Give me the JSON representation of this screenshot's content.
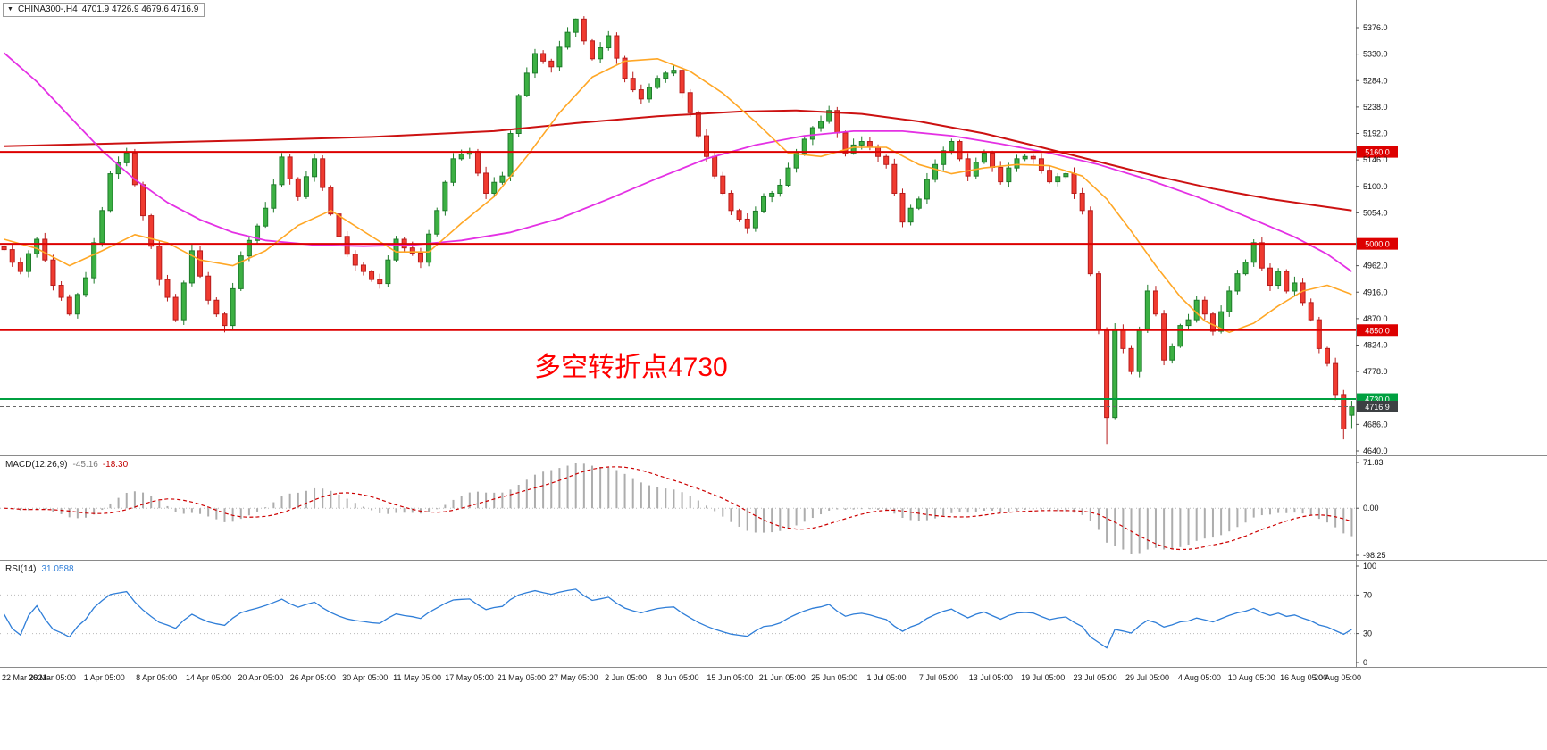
{
  "header": {
    "symbol_timeframe": "CHINA300-,H4",
    "ohlc": "4701.9 4726.9 4679.6 4716.9"
  },
  "annotation": {
    "text": "多空转折点4730",
    "color": "#ff0000"
  },
  "indicators": {
    "macd": {
      "name": "MACD(12,26,9)",
      "main_value": "-45.16",
      "signal_value": "-18.30"
    },
    "rsi": {
      "name": "RSI(14)",
      "value": "31.0588"
    }
  },
  "chart_data": {
    "type": "candlestick+indicators",
    "symbol": "CHINA300-",
    "timeframe": "H4",
    "ohlc_current": {
      "open": 4701.9,
      "high": 4726.9,
      "low": 4679.6,
      "close": 4716.9
    },
    "x_labels": [
      "22 Mar 2021",
      "26 Mar 05:00",
      "1 Apr 05:00",
      "8 Apr 05:00",
      "14 Apr 05:00",
      "20 Apr 05:00",
      "26 Apr 05:00",
      "30 Apr 05:00",
      "11 May 05:00",
      "17 May 05:00",
      "21 May 05:00",
      "27 May 05:00",
      "2 Jun 05:00",
      "8 Jun 05:00",
      "15 Jun 05:00",
      "21 Jun 05:00",
      "25 Jun 05:00",
      "1 Jul 05:00",
      "7 Jul 05:00",
      "13 Jul 05:00",
      "19 Jul 05:00",
      "23 Jul 05:00",
      "29 Jul 05:00",
      "4 Aug 05:00",
      "10 Aug 05:00",
      "16 Aug 05:00",
      "20 Aug 05:00"
    ],
    "y_axis": {
      "min": 4640,
      "max": 5376,
      "step": 46,
      "labels": [
        "5376.0",
        "5330.0",
        "5284.0",
        "5238.0",
        "5192.0",
        "5146.0",
        "5100.0",
        "5054.0",
        "4962.0",
        "4916.0",
        "4870.0",
        "4824.0",
        "4778.0",
        "4686.0",
        "4640.0"
      ]
    },
    "levels": [
      {
        "price": 5160,
        "label": "5160.0",
        "color": "#dd0000"
      },
      {
        "price": 5000,
        "label": "5000.0",
        "color": "#dd0000"
      },
      {
        "price": 4850,
        "label": "4850.0",
        "color": "#dd0000"
      },
      {
        "price": 4730,
        "label": "4730.0",
        "color": "#00a040"
      }
    ],
    "last_price": {
      "value": 4716.9,
      "label": "4716.9",
      "badge_color": "#3c4043"
    },
    "open_first": 4995,
    "closes": [
      4990,
      4968,
      4952,
      4983,
      5008,
      4972,
      4928,
      4907,
      4878,
      4912,
      4941,
      5002,
      5058,
      5122,
      5141,
      5158,
      5103,
      5049,
      4996,
      4938,
      4907,
      4868,
      4932,
      4988,
      4944,
      4902,
      4878,
      4858,
      4922,
      4979,
      5006,
      5031,
      5062,
      5103,
      5151,
      5113,
      5082,
      5117,
      5148,
      5098,
      5052,
      5013,
      4982,
      4963,
      4952,
      4938,
      4931,
      4972,
      5008,
      4993,
      4984,
      4968,
      5017,
      5058,
      5107,
      5148,
      5156,
      5161,
      5123,
      5088,
      5107,
      5118,
      5192,
      5258,
      5297,
      5331,
      5318,
      5308,
      5342,
      5368,
      5391,
      5353,
      5322,
      5341,
      5362,
      5323,
      5288,
      5268,
      5252,
      5272,
      5288,
      5297,
      5302,
      5263,
      5228,
      5188,
      5152,
      5118,
      5088,
      5058,
      5043,
      5028,
      5057,
      5082,
      5088,
      5102,
      5132,
      5158,
      5182,
      5202,
      5213,
      5232,
      5193,
      5158,
      5172,
      5178,
      5168,
      5152,
      5138,
      5088,
      5038,
      5062,
      5078,
      5112,
      5138,
      5162,
      5178,
      5148,
      5118,
      5142,
      5158,
      5133,
      5108,
      5132,
      5148,
      5152,
      5148,
      5128,
      5108,
      5117,
      5122,
      5088,
      5058,
      4948,
      4852,
      4698,
      4852,
      4818,
      4778,
      4852,
      4918,
      4878,
      4798,
      4822,
      4858,
      4868,
      4902,
      4878,
      4848,
      4882,
      4918,
      4948,
      4968,
      5002,
      4958,
      4928,
      4952,
      4918,
      4932,
      4898,
      4868,
      4818,
      4792,
      4738,
      4678,
      4716.9
    ],
    "overrides": {
      "high": {
        "70": 5392,
        "153": 5008
      },
      "low": {
        "27": 4846,
        "135": 4652,
        "164": 4660
      },
      "last": {
        "open": 4701.9,
        "high": 4726.9,
        "low": 4679.6,
        "close": 4716.9
      }
    },
    "colors": {
      "up_fill": "#3cb043",
      "up_stroke": "#1e7b2a",
      "down_fill": "#f03b30",
      "down_stroke": "#b71c1c"
    },
    "moving_averages": [
      {
        "name": "ma-slow-red",
        "color": "#cc1111",
        "width": 2,
        "points": [
          [
            0,
            5170
          ],
          [
            15,
            5175
          ],
          [
            30,
            5180
          ],
          [
            45,
            5186
          ],
          [
            60,
            5196
          ],
          [
            70,
            5210
          ],
          [
            80,
            5222
          ],
          [
            90,
            5230
          ],
          [
            97,
            5232
          ],
          [
            105,
            5226
          ],
          [
            112,
            5213
          ],
          [
            120,
            5192
          ],
          [
            127,
            5168
          ],
          [
            134,
            5143
          ],
          [
            141,
            5118
          ],
          [
            148,
            5096
          ],
          [
            155,
            5078
          ],
          [
            160,
            5068
          ],
          [
            165,
            5058
          ]
        ]
      },
      {
        "name": "ma-long-magenta",
        "color": "#e431e4",
        "width": 1.8,
        "points": [
          [
            0,
            5332
          ],
          [
            4,
            5282
          ],
          [
            8,
            5222
          ],
          [
            12,
            5162
          ],
          [
            16,
            5112
          ],
          [
            20,
            5072
          ],
          [
            24,
            5042
          ],
          [
            28,
            5020
          ],
          [
            32,
            5006
          ],
          [
            38,
            4998
          ],
          [
            44,
            4996
          ],
          [
            50,
            4998
          ],
          [
            56,
            5006
          ],
          [
            62,
            5020
          ],
          [
            68,
            5044
          ],
          [
            74,
            5078
          ],
          [
            80,
            5114
          ],
          [
            86,
            5148
          ],
          [
            92,
            5172
          ],
          [
            98,
            5188
          ],
          [
            104,
            5196
          ],
          [
            110,
            5196
          ],
          [
            116,
            5188
          ],
          [
            122,
            5174
          ],
          [
            128,
            5158
          ],
          [
            134,
            5138
          ],
          [
            140,
            5112
          ],
          [
            146,
            5082
          ],
          [
            152,
            5048
          ],
          [
            158,
            5012
          ],
          [
            162,
            4982
          ],
          [
            165,
            4952
          ]
        ]
      },
      {
        "name": "ma-fast-orange",
        "color": "#ffa726",
        "width": 1.6,
        "points": [
          [
            0,
            5008
          ],
          [
            4,
            4992
          ],
          [
            8,
            4962
          ],
          [
            12,
            4988
          ],
          [
            16,
            5016
          ],
          [
            20,
            5002
          ],
          [
            24,
            4972
          ],
          [
            28,
            4962
          ],
          [
            32,
            4988
          ],
          [
            36,
            5032
          ],
          [
            40,
            5058
          ],
          [
            44,
            5022
          ],
          [
            48,
            4986
          ],
          [
            52,
            4986
          ],
          [
            56,
            5036
          ],
          [
            60,
            5082
          ],
          [
            64,
            5152
          ],
          [
            68,
            5228
          ],
          [
            72,
            5290
          ],
          [
            76,
            5318
          ],
          [
            80,
            5322
          ],
          [
            84,
            5300
          ],
          [
            88,
            5262
          ],
          [
            92,
            5212
          ],
          [
            96,
            5158
          ],
          [
            100,
            5152
          ],
          [
            104,
            5168
          ],
          [
            108,
            5168
          ],
          [
            112,
            5138
          ],
          [
            116,
            5122
          ],
          [
            120,
            5132
          ],
          [
            124,
            5138
          ],
          [
            128,
            5136
          ],
          [
            132,
            5118
          ],
          [
            135,
            5078
          ],
          [
            138,
            5022
          ],
          [
            141,
            4962
          ],
          [
            144,
            4908
          ],
          [
            147,
            4866
          ],
          [
            150,
            4846
          ],
          [
            153,
            4862
          ],
          [
            156,
            4892
          ],
          [
            159,
            4918
          ],
          [
            162,
            4928
          ],
          [
            165,
            4912
          ]
        ]
      }
    ],
    "macd": {
      "label": "MACD(12,26,9)",
      "fast": 12,
      "slow": 26,
      "signal": 9,
      "value_main": -45.16,
      "value_signal": -18.3,
      "axis": [
        "71.83",
        "0.00",
        "-98.25"
      ],
      "hist_color": "#adadad",
      "signal_color": "#cc0000"
    },
    "rsi": {
      "label": "RSI(14)",
      "period": 14,
      "value": 31.0588,
      "axis": [
        "100",
        "70",
        "30",
        "0"
      ],
      "levels": [
        70,
        30
      ],
      "line_color": "#2f7ed8"
    }
  }
}
